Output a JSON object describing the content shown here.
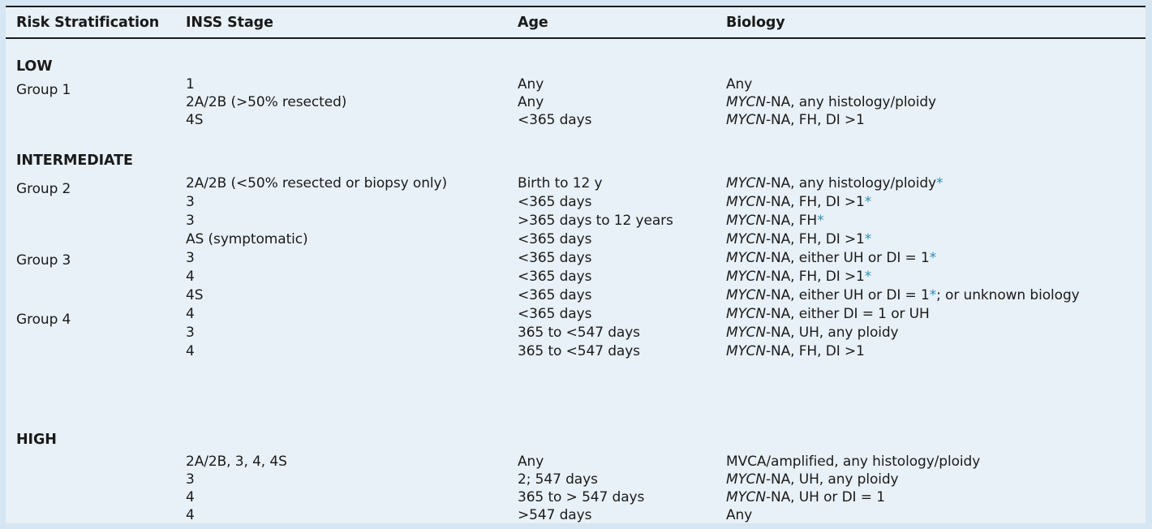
{
  "headers": {
    "risk": "Risk Stratification",
    "stage": "INSS Stage",
    "age": "Age",
    "biology": "Biology"
  },
  "sections": {
    "low": "LOW",
    "intermediate": "INTERMEDIATE",
    "high": "HIGH"
  },
  "groups": {
    "g1": "Group 1",
    "g2": "Group 2",
    "g3": "Group 3",
    "g4": "Group 4"
  },
  "rows": [
    {
      "stage": "1",
      "age": "Any",
      "biology": {
        "pre": "",
        "it": "",
        "post": "Any",
        "star": "",
        "tail": ""
      }
    },
    {
      "stage": "2A/2B (>50% resected)",
      "age": "Any",
      "biology": {
        "pre": "",
        "it": "MYCN",
        "post": "-NA, any histology/ploidy",
        "star": "",
        "tail": ""
      }
    },
    {
      "stage": "4S",
      "age": "<365 days",
      "biology": {
        "pre": "",
        "it": "MYCN",
        "post": "-NA, FH, DI >1",
        "star": "",
        "tail": ""
      }
    },
    {
      "stage": "2A/2B (<50% resected or biopsy only)",
      "age": "Birth to 12 y",
      "biology": {
        "pre": "",
        "it": "MYCN",
        "post": "-NA, any histology/ploidy",
        "star": "*",
        "tail": ""
      }
    },
    {
      "stage": "3",
      "age": "<365 days",
      "biology": {
        "pre": "",
        "it": "MYCN",
        "post": "-NA, FH, DI >1",
        "star": "*",
        "tail": ""
      }
    },
    {
      "stage": "3",
      "age": ">365 days to 12 years",
      "biology": {
        "pre": "",
        "it": "MYCN",
        "post": "-NA, FH",
        "star": "*",
        "tail": ""
      }
    },
    {
      "stage": "AS (symptomatic)",
      "age": "<365 days",
      "biology": {
        "pre": "",
        "it": "MYCN",
        "post": "-NA, FH, DI >1",
        "star": "*",
        "tail": ""
      }
    },
    {
      "stage": "3",
      "age": "<365 days",
      "biology": {
        "pre": "",
        "it": "MYCN",
        "post": "-NA, either UH or DI = 1",
        "star": "*",
        "tail": ""
      }
    },
    {
      "stage": "4",
      "age": "<365 days",
      "biology": {
        "pre": "",
        "it": "MYCN",
        "post": "-NA, FH, DI >1",
        "star": "*",
        "tail": ""
      }
    },
    {
      "stage": "4S",
      "age": "<365 days",
      "biology": {
        "pre": "",
        "it": "MYCN",
        "post": "-NA, either UH or DI = 1",
        "star": "*",
        "tail": "; or unknown biology"
      }
    },
    {
      "stage": "4",
      "age": "<365 days",
      "biology": {
        "pre": "",
        "it": "MYCN",
        "post": "-NA, either DI = 1 or UH",
        "star": "",
        "tail": ""
      }
    },
    {
      "stage": "3",
      "age": "365 to <547 days",
      "biology": {
        "pre": "",
        "it": "MYCN",
        "post": "-NA, UH, any ploidy",
        "star": "",
        "tail": ""
      }
    },
    {
      "stage": "4",
      "age": "365 to <547 days",
      "biology": {
        "pre": "",
        "it": "MYCN",
        "post": "-NA, FH, DI >1",
        "star": "",
        "tail": ""
      }
    },
    {
      "stage": "2A/2B, 3, 4, 4S",
      "age": "Any",
      "biology": {
        "pre": "",
        "it": "",
        "post": "MVCA/amplified, any histology/ploidy",
        "star": "",
        "tail": ""
      }
    },
    {
      "stage": "3",
      "age": "2; 547 days",
      "biology": {
        "pre": "",
        "it": "MYCN",
        "post": "-NA, UH, any ploidy",
        "star": "",
        "tail": ""
      }
    },
    {
      "stage": "4",
      "age": "365 to > 547 days",
      "biology": {
        "pre": "",
        "it": "MYCN",
        "post": "-NA, UH or DI = 1",
        "star": "",
        "tail": ""
      }
    },
    {
      "stage": "4",
      "age": ">547 days",
      "biology": {
        "pre": "",
        "it": "",
        "post": "Any",
        "star": "",
        "tail": ""
      }
    }
  ]
}
